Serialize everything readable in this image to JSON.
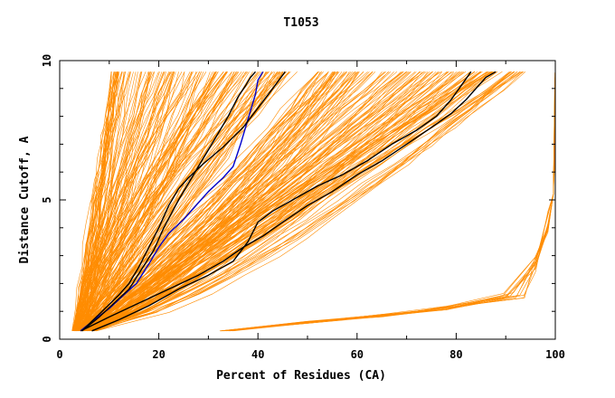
{
  "chart_data": {
    "type": "line",
    "title": "T1053",
    "xlabel": "Percent of Residues (CA)",
    "ylabel": "Distance Cutoff, A",
    "xlim": [
      0,
      100
    ],
    "ylim": [
      0,
      10
    ],
    "xticks": [
      0,
      20,
      40,
      60,
      80,
      100
    ],
    "yticks": [
      0,
      5,
      10
    ],
    "grid": false,
    "colors": {
      "background": "#ffffff",
      "orange": "#ff8c00",
      "black": "#000000",
      "blue": "#0000cc"
    },
    "series": [
      {
        "color": "#0000cc",
        "x": [
          4.2,
          7,
          10,
          13,
          15.5,
          18,
          20,
          22,
          25,
          28,
          30,
          33,
          35,
          36.5,
          37.5,
          38.5,
          39.5,
          40,
          41
        ],
        "y": [
          0.3,
          0.7,
          1.1,
          1.6,
          2.0,
          2.7,
          3.3,
          3.8,
          4.3,
          4.9,
          5.3,
          5.8,
          6.2,
          7.0,
          7.6,
          8.2,
          8.8,
          9.3,
          9.6
        ]
      },
      {
        "color": "#000000",
        "x": [
          4.5,
          8,
          11,
          14,
          16.5,
          19,
          21,
          22.5,
          24,
          26,
          28,
          30,
          32,
          34,
          36,
          37.5,
          38.5,
          39.5
        ],
        "y": [
          0.3,
          0.8,
          1.3,
          1.8,
          2.5,
          3.2,
          4.0,
          4.5,
          5.0,
          5.6,
          6.2,
          6.8,
          7.4,
          8.0,
          8.7,
          9.1,
          9.4,
          9.6
        ]
      },
      {
        "color": "#000000",
        "x": [
          4.5,
          8,
          12,
          14,
          16,
          18,
          20,
          22,
          24,
          26,
          29,
          33,
          37,
          40,
          43,
          45.5
        ],
        "y": [
          0.3,
          0.9,
          1.6,
          2.0,
          2.6,
          3.3,
          4.0,
          4.8,
          5.4,
          5.8,
          6.3,
          6.9,
          7.6,
          8.3,
          9.0,
          9.6
        ]
      },
      {
        "color": "#000000",
        "x": [
          4.3,
          10,
          16,
          22,
          28,
          33,
          37,
          41,
          45,
          50,
          55,
          60,
          65,
          70,
          75,
          79,
          82,
          84,
          86,
          88
        ],
        "y": [
          0.3,
          0.8,
          1.3,
          1.8,
          2.3,
          2.8,
          3.3,
          3.7,
          4.2,
          4.8,
          5.3,
          5.9,
          6.4,
          7.0,
          7.6,
          8.1,
          8.6,
          9.0,
          9.4,
          9.6
        ]
      },
      {
        "color": "#000000",
        "x": [
          6.5,
          12,
          18,
          24,
          30,
          35,
          38,
          40,
          43,
          47,
          52,
          57,
          62,
          67,
          72,
          76,
          79,
          81,
          83
        ],
        "y": [
          0.3,
          0.7,
          1.2,
          1.8,
          2.3,
          2.8,
          3.5,
          4.2,
          4.6,
          5.0,
          5.5,
          5.9,
          6.4,
          7.0,
          7.5,
          8.0,
          8.6,
          9.1,
          9.6
        ]
      }
    ]
  }
}
